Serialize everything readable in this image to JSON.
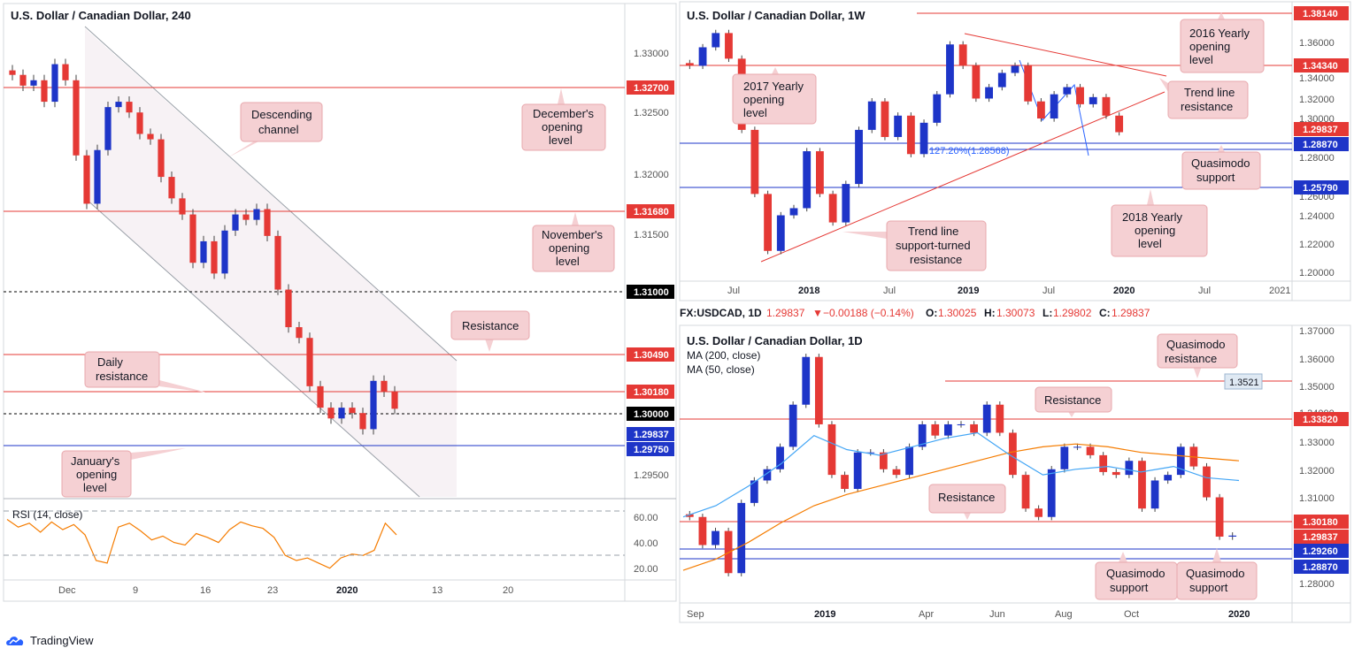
{
  "app": {
    "brand": "TradingView"
  },
  "panels": {
    "h4": {
      "title": "U.S. Dollar / Canadian Dollar, 240",
      "y_ticks": [
        "1.33000",
        "1.32500",
        "1.32000",
        "1.31500",
        "1.29500"
      ],
      "x_ticks": [
        "Dec",
        "9",
        "16",
        "23",
        "2020",
        "13",
        "20"
      ],
      "levels": [
        {
          "label": "1.32700",
          "color": "#e53935"
        },
        {
          "label": "1.31680",
          "color": "#e53935"
        },
        {
          "label": "1.31000",
          "color": "#000000"
        },
        {
          "label": "1.30490",
          "color": "#e53935"
        },
        {
          "label": "1.30180",
          "color": "#e53935"
        },
        {
          "label": "1.30000",
          "color": "#000000"
        },
        {
          "label": "1.29837",
          "color": "#1e35c8"
        },
        {
          "label": "1.29750",
          "color": "#1e35c8"
        }
      ],
      "notes": {
        "descending_channel": [
          "Descending",
          "channel"
        ],
        "december": [
          "December's",
          "opening",
          "level"
        ],
        "november": [
          "November's",
          "opening",
          "level"
        ],
        "resistance": [
          "Resistance"
        ],
        "daily_resistance": [
          "Daily",
          "resistance"
        ],
        "january": [
          "January's",
          "opening",
          "level"
        ]
      },
      "rsi": {
        "title": "RSI (14, close)",
        "ticks": [
          "60.00",
          "40.00",
          "20.00"
        ]
      }
    },
    "weekly": {
      "title": "U.S. Dollar / Canadian Dollar, 1W",
      "y_ticks": [
        "1.36000",
        "1.34000",
        "1.32000",
        "1.30000",
        "1.28000",
        "1.26000",
        "1.24000",
        "1.22000",
        "1.20000"
      ],
      "x_ticks": [
        "Jul",
        "2018",
        "Jul",
        "2019",
        "Jul",
        "2020",
        "Jul",
        "2021"
      ],
      "levels": [
        {
          "label": "1.38140",
          "color": "#e53935"
        },
        {
          "label": "1.34340",
          "color": "#e53935"
        },
        {
          "label": "1.29837",
          "color": "#e53935"
        },
        {
          "label": "1.28870",
          "color": "#1e35c8"
        },
        {
          "label": "1.25790",
          "color": "#1e35c8"
        }
      ],
      "fib_label": "127.20%(1.28568)",
      "notes": {
        "y2016": [
          "2016 Yearly",
          "opening",
          "level"
        ],
        "y2017": [
          "2017 Yearly",
          "opening",
          "level"
        ],
        "trend_res": [
          "Trend line",
          "resistance"
        ],
        "quasimodo": [
          "Quasimodo",
          "support"
        ],
        "y2018": [
          "2018 Yearly",
          "opening",
          "level"
        ],
        "trend_sup": [
          "Trend line",
          "support-turned",
          "resistance"
        ]
      }
    },
    "daily": {
      "header": {
        "symbol": "FX:USDCAD, 1D",
        "price": "1.29837",
        "change": "−0.00188 (−0.14%)",
        "o": "1.30025",
        "h": "1.30073",
        "l": "1.29802",
        "c": "1.29837"
      },
      "title": "U.S. Dollar / Canadian Dollar, 1D",
      "ma_200": "MA (200, close)",
      "ma_50": "MA (50, close)",
      "y_ticks": [
        "1.37000",
        "1.36000",
        "1.35000",
        "1.34000",
        "1.33000",
        "1.32000",
        "1.31000",
        "1.28000"
      ],
      "x_ticks": [
        "Sep",
        "2019",
        "Apr",
        "Jun",
        "Aug",
        "Oct",
        "2020"
      ],
      "levels": [
        {
          "label": "1.35210",
          "color": "#dfe9f3"
        },
        {
          "label": "1.33820",
          "color": "#e53935"
        },
        {
          "label": "1.30180",
          "color": "#e53935"
        },
        {
          "label": "1.29837",
          "color": "#e53935"
        },
        {
          "label": "1.29260",
          "color": "#1e35c8"
        },
        {
          "label": "1.28870",
          "color": "#1e35c8"
        }
      ],
      "label_3521": "1.3521",
      "notes": {
        "qm_res": [
          "Quasimodo",
          "resistance"
        ],
        "resistance_top": [
          "Resistance"
        ],
        "resistance_mid": [
          "Resistance"
        ],
        "qm_sup1": [
          "Quasimodo",
          "support"
        ],
        "qm_sup2": [
          "Quasimodo",
          "support"
        ]
      }
    }
  },
  "chart_data": [
    {
      "type": "candlestick",
      "title": "U.S. Dollar / Canadian Dollar, 240",
      "x_labels": [
        "Dec",
        "9",
        "16",
        "23",
        "2020",
        "13",
        "20"
      ],
      "ylim": [
        1.2925,
        1.3345
      ],
      "series": [
        {
          "name": "close",
          "values": [
            1.3295,
            1.3285,
            1.329,
            1.327,
            1.3305,
            1.329,
            1.322,
            1.3175,
            1.3225,
            1.3265,
            1.327,
            1.326,
            1.324,
            1.3235,
            1.32,
            1.318,
            1.3165,
            1.312,
            1.314,
            1.311,
            1.315,
            1.3165,
            1.316,
            1.317,
            1.3145,
            1.3095,
            1.306,
            1.305,
            1.3005,
            1.2985,
            1.2975,
            1.2985,
            1.298,
            1.2965,
            1.301,
            1.3,
            1.2984
          ]
        }
      ],
      "levels": [
        1.327,
        1.3168,
        1.31,
        1.3049,
        1.3018,
        1.3,
        1.29837,
        1.2975
      ]
    },
    {
      "type": "line",
      "title": "RSI (14, close)",
      "ylim": [
        15,
        70
      ],
      "y_ticks": [
        20,
        40,
        60
      ],
      "series": [
        {
          "name": "RSI",
          "values": [
            58,
            52,
            55,
            48,
            56,
            50,
            54,
            46,
            26,
            24,
            52,
            55,
            49,
            42,
            45,
            40,
            38,
            47,
            44,
            40,
            50,
            56,
            53,
            51,
            44,
            30,
            26,
            28,
            24,
            20,
            28,
            31,
            30,
            34,
            55,
            46
          ]
        }
      ]
    },
    {
      "type": "candlestick",
      "title": "U.S. Dollar / Canadian Dollar, 1W",
      "x_labels": [
        "Jul",
        "2018",
        "Jul",
        "2019",
        "Jul",
        "2020",
        "Jul",
        "2021"
      ],
      "ylim": [
        1.195,
        1.385
      ],
      "series": [
        {
          "name": "close",
          "values": [
            1.345,
            1.358,
            1.368,
            1.35,
            1.3,
            1.255,
            1.215,
            1.24,
            1.245,
            1.285,
            1.255,
            1.235,
            1.262,
            1.3,
            1.32,
            1.295,
            1.31,
            1.283,
            1.305,
            1.325,
            1.36,
            1.345,
            1.322,
            1.33,
            1.34,
            1.345,
            1.32,
            1.308,
            1.325,
            1.33,
            1.318,
            1.323,
            1.31,
            1.29837
          ]
        }
      ],
      "levels": [
        1.3814,
        1.3434,
        1.29837,
        1.2887,
        1.2579
      ],
      "annotations": [
        {
          "label": "127.20%(1.28568)",
          "value": 1.28568
        }
      ]
    },
    {
      "type": "candlestick",
      "title": "U.S. Dollar / Canadian Dollar, 1D",
      "x_labels": [
        "Sep",
        "2019",
        "Apr",
        "Jun",
        "Aug",
        "Oct",
        "2020"
      ],
      "ylim": [
        1.275,
        1.372
      ],
      "series": [
        {
          "name": "close",
          "values": [
            1.305,
            1.295,
            1.3,
            1.285,
            1.31,
            1.318,
            1.322,
            1.33,
            1.345,
            1.362,
            1.338,
            1.32,
            1.315,
            1.328,
            1.328,
            1.322,
            1.32,
            1.33,
            1.338,
            1.334,
            1.338,
            1.338,
            1.335,
            1.345,
            1.335,
            1.32,
            1.308,
            1.305,
            1.322,
            1.33,
            1.33,
            1.327,
            1.321,
            1.32,
            1.325,
            1.308,
            1.318,
            1.32,
            1.33,
            1.323,
            1.312,
            1.298,
            1.29837
          ]
        },
        {
          "name": "MA (200, close)",
          "values": [
            1.286,
            1.29,
            1.296,
            1.303,
            1.309,
            1.313,
            1.316,
            1.319,
            1.322,
            1.325,
            1.328,
            1.33,
            1.331,
            1.33,
            1.328,
            1.327,
            1.326,
            1.325
          ]
        },
        {
          "name": "MA (50, close)",
          "values": [
            1.305,
            1.309,
            1.316,
            1.324,
            1.334,
            1.329,
            1.327,
            1.33,
            1.333,
            1.335,
            1.327,
            1.32,
            1.322,
            1.323,
            1.321,
            1.323,
            1.319,
            1.318
          ]
        }
      ],
      "levels": [
        1.3521,
        1.3382,
        1.3018,
        1.29837,
        1.2926,
        1.2887
      ]
    }
  ]
}
